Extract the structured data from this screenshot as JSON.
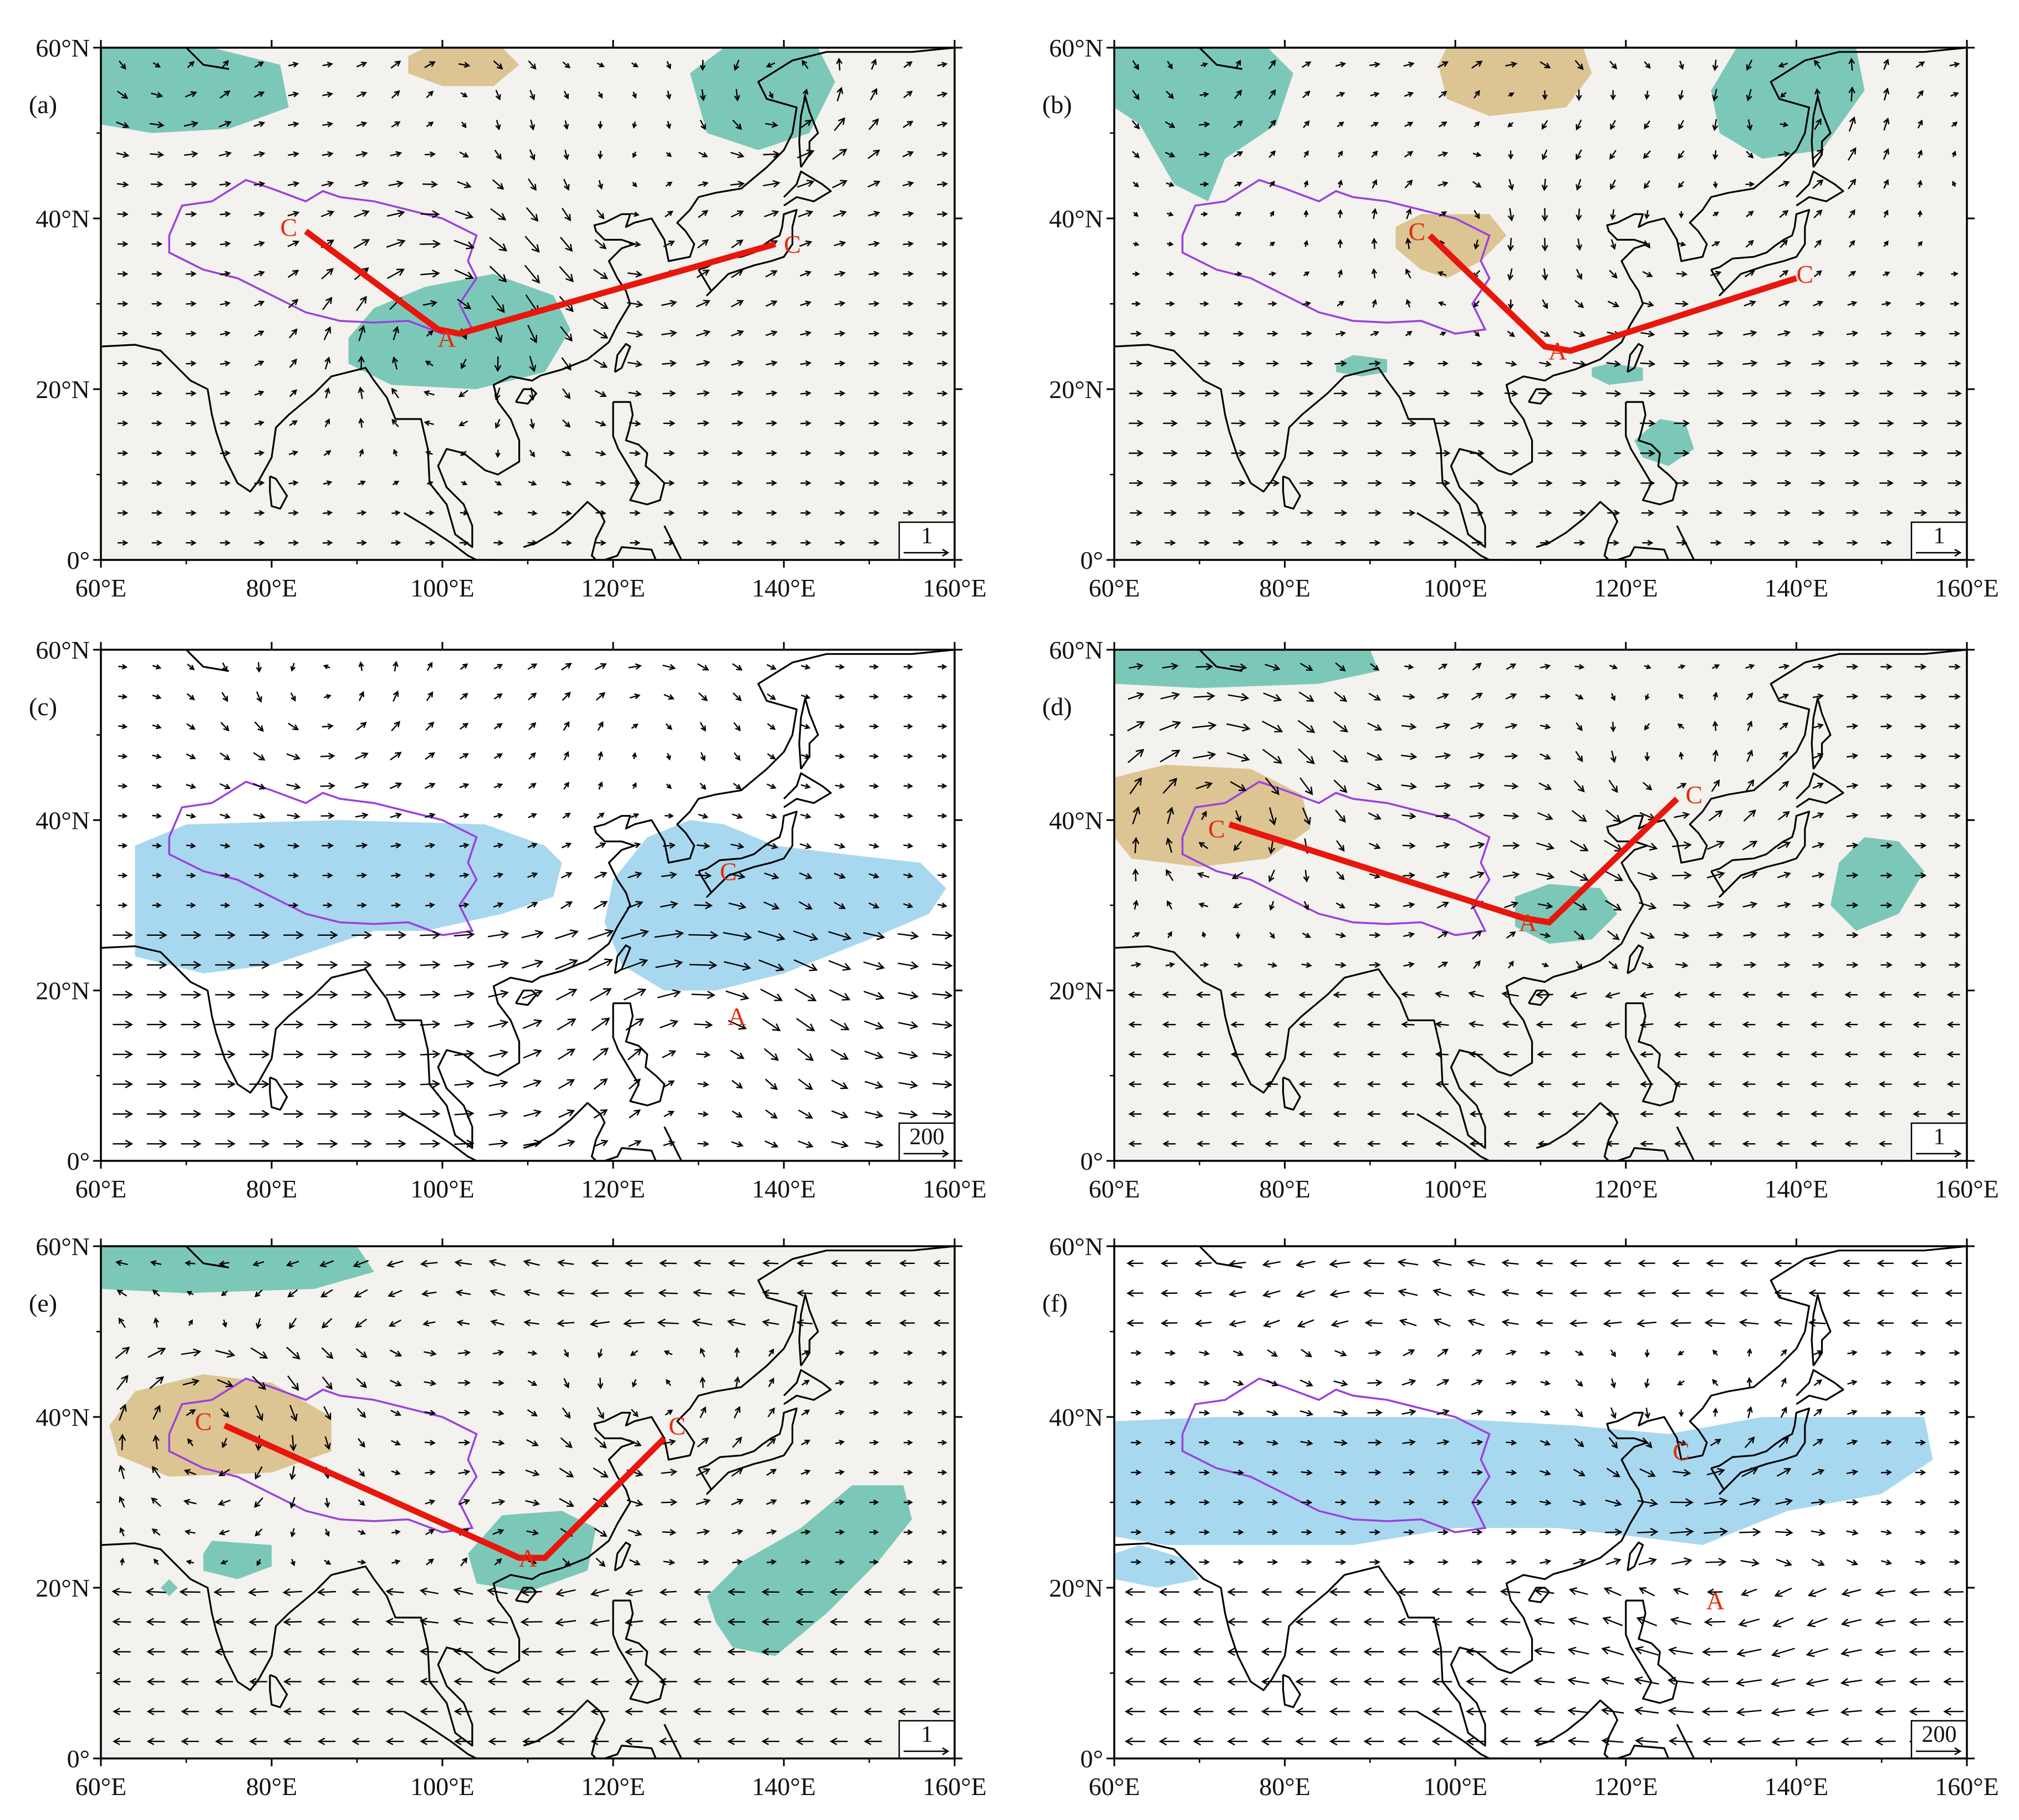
{
  "map": {
    "lon_range": [
      60,
      160
    ],
    "lat_range": [
      0,
      60
    ],
    "x_ticks": [
      "60°E",
      "80°E",
      "100°E",
      "120°E",
      "140°E",
      "160°E"
    ],
    "y_ticks": [
      "0°",
      "20°N",
      "40°N",
      "60°N"
    ],
    "colors": {
      "bg_shaded": "#f3f2ee",
      "bg_white": "#ffffff",
      "teal": "#7cc8b8",
      "tan": "#dcc493",
      "lightblue": "#a8d8ef",
      "wave_line": "#e8160c",
      "plateau_outline": "#9b3fe0",
      "coast": "#000000"
    }
  },
  "panels": [
    {
      "label": "(a)",
      "ref": "1",
      "bg": "shaded",
      "markers": [
        {
          "text": "C",
          "lon": 82,
          "lat": 39
        },
        {
          "text": "A",
          "lon": 100.5,
          "lat": 26
        },
        {
          "text": "C",
          "lon": 141,
          "lat": 37
        }
      ],
      "wave": [
        [
          84,
          38.5
        ],
        [
          99.5,
          27
        ],
        [
          102,
          26.5
        ],
        [
          139,
          37
        ]
      ],
      "blobs": [
        {
          "c": "teal",
          "pts": [
            [
              60,
              60
            ],
            [
              73,
              60
            ],
            [
              81,
              58
            ],
            [
              82,
              53
            ],
            [
              75,
              50.5
            ],
            [
              66,
              50
            ],
            [
              60,
              51
            ]
          ]
        },
        {
          "c": "tan",
          "pts": [
            [
              96,
              59
            ],
            [
              98,
              60
            ],
            [
              107,
              60
            ],
            [
              109,
              58
            ],
            [
              106,
              55.5
            ],
            [
              100,
              55.5
            ],
            [
              96,
              57
            ]
          ]
        },
        {
          "c": "teal",
          "pts": [
            [
              129,
              57
            ],
            [
              133,
              60
            ],
            [
              144,
              60
            ],
            [
              146,
              56
            ],
            [
              143,
              50
            ],
            [
              137,
              48
            ],
            [
              131,
              50
            ]
          ]
        },
        {
          "c": "teal",
          "pts": [
            [
              89,
              26
            ],
            [
              92,
              29.5
            ],
            [
              98,
              32
            ],
            [
              106,
              33.5
            ],
            [
              113,
              31
            ],
            [
              115,
              27
            ],
            [
              112,
              22
            ],
            [
              104,
              20
            ],
            [
              94,
              20.5
            ],
            [
              89,
              23
            ]
          ]
        }
      ]
    },
    {
      "label": "(b)",
      "ref": "1",
      "bg": "shaded",
      "markers": [
        {
          "text": "C",
          "lon": 95.5,
          "lat": 38.5
        },
        {
          "text": "A",
          "lon": 112,
          "lat": 24.5
        },
        {
          "text": "C",
          "lon": 141,
          "lat": 33.5
        }
      ],
      "wave": [
        [
          97,
          38
        ],
        [
          110.5,
          25
        ],
        [
          113.5,
          24.5
        ],
        [
          140,
          33
        ]
      ],
      "blobs": [
        {
          "c": "teal",
          "pts": [
            [
              60,
              60
            ],
            [
              78,
              60
            ],
            [
              81,
              57
            ],
            [
              79,
              51
            ],
            [
              73,
              47
            ],
            [
              71,
              42
            ],
            [
              67,
              44
            ],
            [
              63,
              51
            ],
            [
              60,
              53
            ]
          ]
        },
        {
          "c": "tan",
          "pts": [
            [
              98,
              58
            ],
            [
              99,
              60
            ],
            [
              115,
              60
            ],
            [
              116,
              57
            ],
            [
              113,
              53
            ],
            [
              104,
              52
            ],
            [
              99,
              54
            ]
          ]
        },
        {
          "c": "teal",
          "pts": [
            [
              130,
              55
            ],
            [
              133,
              60
            ],
            [
              147,
              60
            ],
            [
              148,
              55
            ],
            [
              143,
              48
            ],
            [
              136,
              47
            ],
            [
              131,
              50
            ]
          ]
        },
        {
          "c": "tan",
          "pts": [
            [
              93,
              39
            ],
            [
              96,
              40.5
            ],
            [
              104,
              40.5
            ],
            [
              106,
              38
            ],
            [
              103,
              35
            ],
            [
              99,
              33
            ],
            [
              96,
              34
            ],
            [
              93,
              36.5
            ]
          ]
        },
        {
          "c": "teal",
          "pts": [
            [
              86,
              23
            ],
            [
              88,
              24
            ],
            [
              92,
              23.5
            ],
            [
              92,
              22
            ],
            [
              89,
              21.5
            ],
            [
              86,
              22
            ]
          ]
        },
        {
          "c": "teal",
          "pts": [
            [
              116,
              22.5
            ],
            [
              118,
              23
            ],
            [
              122,
              22.5
            ],
            [
              122,
              21
            ],
            [
              118,
              20.5
            ],
            [
              116,
              21.5
            ]
          ]
        },
        {
          "c": "teal",
          "pts": [
            [
              121,
              14
            ],
            [
              124,
              16.5
            ],
            [
              127,
              16
            ],
            [
              128,
              13
            ],
            [
              125,
              11
            ],
            [
              122,
              12
            ]
          ]
        }
      ]
    },
    {
      "label": "(c)",
      "ref": "200",
      "bg": "white",
      "markers": [
        {
          "text": "C",
          "lon": 133.5,
          "lat": 34
        },
        {
          "text": "A",
          "lon": 134.5,
          "lat": 17
        }
      ],
      "wave": [],
      "blobs": [
        {
          "c": "lightblue",
          "pts": [
            [
              64,
              37
            ],
            [
              70,
              39.5
            ],
            [
              88,
              40
            ],
            [
              105,
              39.5
            ],
            [
              112,
              37
            ],
            [
              114,
              35
            ],
            [
              113,
              31
            ],
            [
              107,
              29
            ],
            [
              98,
              27
            ],
            [
              92,
              27
            ],
            [
              86,
              25
            ],
            [
              80,
              23
            ],
            [
              72,
              22
            ],
            [
              64,
              24
            ],
            [
              64,
              31
            ]
          ]
        },
        {
          "c": "lightblue",
          "pts": [
            [
              120,
              33
            ],
            [
              124,
              38
            ],
            [
              129,
              40
            ],
            [
              133,
              39.5
            ],
            [
              139,
              37
            ],
            [
              147,
              36
            ],
            [
              156,
              35
            ],
            [
              159,
              32
            ],
            [
              157,
              29
            ],
            [
              150,
              26
            ],
            [
              140,
              22
            ],
            [
              132,
              20
            ],
            [
              126,
              20
            ],
            [
              121,
              23
            ],
            [
              119,
              28
            ]
          ]
        }
      ]
    },
    {
      "label": "(d)",
      "ref": "1",
      "bg": "shaded",
      "markers": [
        {
          "text": "C",
          "lon": 72,
          "lat": 39
        },
        {
          "text": "A",
          "lon": 108.5,
          "lat": 28
        },
        {
          "text": "C",
          "lon": 128,
          "lat": 43
        }
      ],
      "wave": [
        [
          73.5,
          39.5
        ],
        [
          108,
          28.5
        ],
        [
          111,
          28
        ],
        [
          126,
          42.5
        ]
      ],
      "blobs": [
        {
          "c": "teal",
          "pts": [
            [
              60,
              60
            ],
            [
              90,
              60
            ],
            [
              91,
              57.5
            ],
            [
              84,
              56
            ],
            [
              70,
              55.5
            ],
            [
              60,
              56
            ]
          ]
        },
        {
          "c": "tan",
          "pts": [
            [
              60,
              45
            ],
            [
              66,
              46.5
            ],
            [
              76,
              46
            ],
            [
              82,
              43
            ],
            [
              83,
              39
            ],
            [
              78,
              35.5
            ],
            [
              70,
              34.5
            ],
            [
              62,
              35.5
            ],
            [
              60,
              38
            ]
          ]
        },
        {
          "c": "teal",
          "pts": [
            [
              107,
              31
            ],
            [
              111,
              32.5
            ],
            [
              117,
              32
            ],
            [
              119,
              29
            ],
            [
              116,
              26
            ],
            [
              111,
              25.5
            ],
            [
              107,
              27.5
            ]
          ]
        },
        {
          "c": "teal",
          "pts": [
            [
              145,
              35
            ],
            [
              148,
              38
            ],
            [
              152,
              37.5
            ],
            [
              155,
              34
            ],
            [
              152,
              29
            ],
            [
              147,
              27
            ],
            [
              144,
              30
            ]
          ]
        }
      ]
    },
    {
      "label": "(e)",
      "ref": "1",
      "bg": "shaded",
      "markers": [
        {
          "text": "C",
          "lon": 72,
          "lat": 39.5
        },
        {
          "text": "A",
          "lon": 110,
          "lat": 23.5
        },
        {
          "text": "C",
          "lon": 127.5,
          "lat": 39
        }
      ],
      "wave": [
        [
          74.5,
          39
        ],
        [
          109,
          23.5
        ],
        [
          112,
          23.5
        ],
        [
          126,
          37.5
        ]
      ],
      "blobs": [
        {
          "c": "teal",
          "pts": [
            [
              60,
              60
            ],
            [
              90,
              60
            ],
            [
              92,
              57
            ],
            [
              85,
              55
            ],
            [
              70,
              54.5
            ],
            [
              60,
              55
            ]
          ]
        },
        {
          "c": "tan",
          "pts": [
            [
              61,
              39
            ],
            [
              64,
              43
            ],
            [
              72,
              45
            ],
            [
              80,
              44
            ],
            [
              87,
              40
            ],
            [
              87,
              36
            ],
            [
              80,
              33.5
            ],
            [
              68,
              33
            ],
            [
              62,
              35.5
            ]
          ]
        },
        {
          "c": "teal",
          "pts": [
            [
              103,
              24
            ],
            [
              107,
              28.5
            ],
            [
              114,
              29
            ],
            [
              118,
              27
            ],
            [
              117,
              22
            ],
            [
              110,
              19.5
            ],
            [
              104,
              20.5
            ]
          ]
        },
        {
          "c": "teal",
          "pts": [
            [
              131,
              19
            ],
            [
              135,
              23
            ],
            [
              142,
              27
            ],
            [
              148,
              32
            ],
            [
              154,
              32
            ],
            [
              155,
              28
            ],
            [
              151,
              23
            ],
            [
              145,
              17
            ],
            [
              139,
              12
            ],
            [
              134,
              13
            ],
            [
              132,
              16
            ]
          ]
        },
        {
          "c": "teal",
          "pts": [
            [
              72,
              24
            ],
            [
              73,
              25.5
            ],
            [
              80,
              25
            ],
            [
              80,
              22.5
            ],
            [
              76,
              21
            ],
            [
              72,
              22
            ]
          ]
        },
        {
          "c": "teal",
          "pts": [
            [
              67,
              20
            ],
            [
              68,
              21
            ],
            [
              69,
              20
            ],
            [
              68,
              19
            ]
          ]
        }
      ]
    },
    {
      "label": "(f)",
      "ref": "200",
      "bg": "white",
      "markers": [
        {
          "text": "C",
          "lon": 126.5,
          "lat": 36
        },
        {
          "text": "A",
          "lon": 130.5,
          "lat": 18.5
        }
      ],
      "wave": [],
      "blobs": [
        {
          "c": "lightblue",
          "pts": [
            [
              60,
              39.5
            ],
            [
              72,
              40
            ],
            [
              96,
              40
            ],
            [
              114,
              39
            ],
            [
              125,
              38
            ],
            [
              136,
              40
            ],
            [
              155,
              40
            ],
            [
              156,
              35
            ],
            [
              150,
              31
            ],
            [
              139,
              29
            ],
            [
              129,
              25
            ],
            [
              121,
              26
            ],
            [
              112,
              27
            ],
            [
              100,
              27
            ],
            [
              88,
              25
            ],
            [
              76,
              25
            ],
            [
              66,
              25
            ],
            [
              60,
              26
            ]
          ]
        },
        {
          "c": "lightblue",
          "pts": [
            [
              60,
              24
            ],
            [
              63,
              25
            ],
            [
              68,
              23.5
            ],
            [
              70,
              21
            ],
            [
              65,
              20
            ],
            [
              60,
              21
            ]
          ]
        }
      ]
    }
  ]
}
